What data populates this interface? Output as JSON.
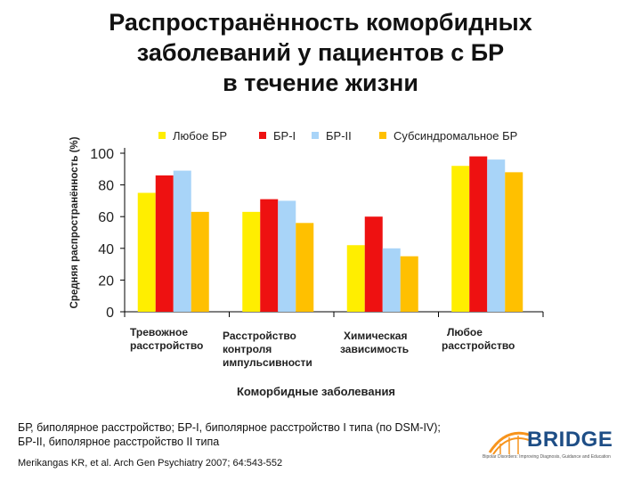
{
  "title": {
    "line1": "Распространённость коморбидных",
    "line2": "заболеваний у пациентов с БР",
    "line3": "в течение жизни"
  },
  "colors": {
    "any_bd": "#FFEE00",
    "bd1": "#EE1111",
    "bd2": "#A8D4F8",
    "subthreshold": "#FFC000",
    "axis": "#000000",
    "logo": "#1E4E86",
    "logo_accent": "#F7941D"
  },
  "chart_data": {
    "type": "bar",
    "title": "Распространённость коморбидных заболеваний у пациентов с БР в течение жизни",
    "xlabel": "Коморбидные заболевания",
    "ylabel": "Средняя распространённость (%)",
    "ylim": [
      0,
      100
    ],
    "yticks": [
      "0",
      "20",
      "40",
      "60",
      "80",
      "100"
    ],
    "legend_position": "top",
    "categories": [
      [
        "Тревожное",
        "расстройство"
      ],
      [
        "Расстройство",
        "контроля",
        "импульсивности"
      ],
      [
        "Химическая",
        "зависимость"
      ],
      [
        "Любое",
        "расстройство"
      ]
    ],
    "series": [
      {
        "name": "Любое БР",
        "color": "#FFEE00",
        "values": [
          75,
          63,
          42,
          92
        ]
      },
      {
        "name": "БР-I",
        "color": "#EE1111",
        "values": [
          86,
          71,
          60,
          98
        ]
      },
      {
        "name": "БР-II",
        "color": "#A8D4F8",
        "values": [
          89,
          70,
          40,
          96
        ]
      },
      {
        "name": "Субсиндромальное БР",
        "color": "#FFC000",
        "values": [
          63,
          56,
          35,
          88
        ]
      }
    ]
  },
  "footnote": {
    "line1": "БР, биполярное расстройство; БР-I, биполярное расстройство I типа (по DSM-IV);",
    "line2": "БР-II, биполярное расстройство II типа"
  },
  "reference": "Merikangas KR, et al. Arch Gen Psychiatry 2007; 64:543-552",
  "logo": {
    "icon": "bridge-arch-icon",
    "word": "BRIDGE",
    "tagline": "Bipolar Disorders: Improving Diagnosis, Guidance and Education"
  }
}
